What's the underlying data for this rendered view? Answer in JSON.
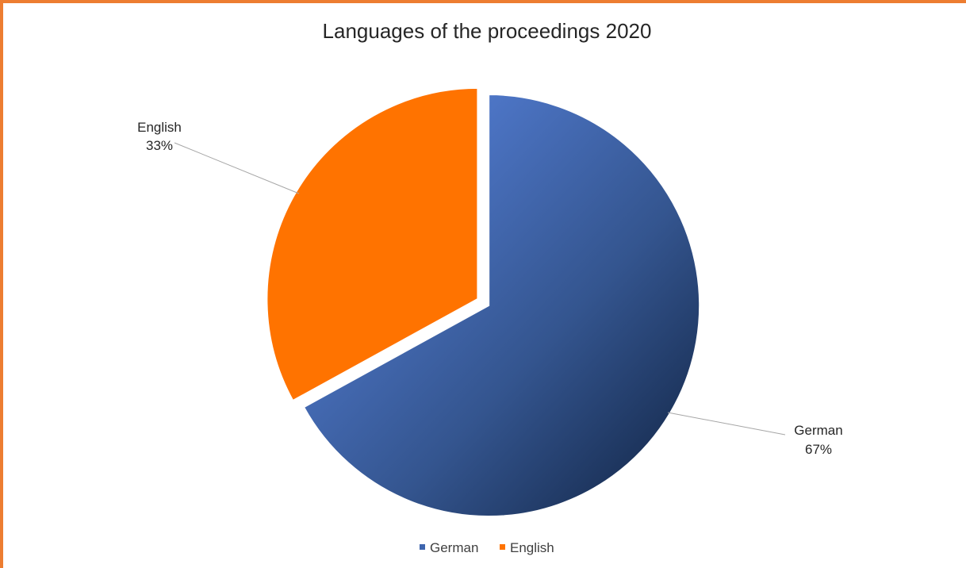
{
  "chart_data": {
    "type": "pie",
    "title": "Languages of the proceedings 2020",
    "slices": [
      {
        "label": "German",
        "value": 67,
        "value_label": "67%",
        "color": "#2E4F8C"
      },
      {
        "label": "English",
        "value": 33,
        "value_label": "33%",
        "color": "#FF7300"
      }
    ],
    "legend": {
      "position": "bottom",
      "entries": [
        {
          "label": "German",
          "color": "#3E65AE"
        },
        {
          "label": "English",
          "color": "#FF7300"
        }
      ]
    }
  },
  "frame_color": "#ED7D31"
}
